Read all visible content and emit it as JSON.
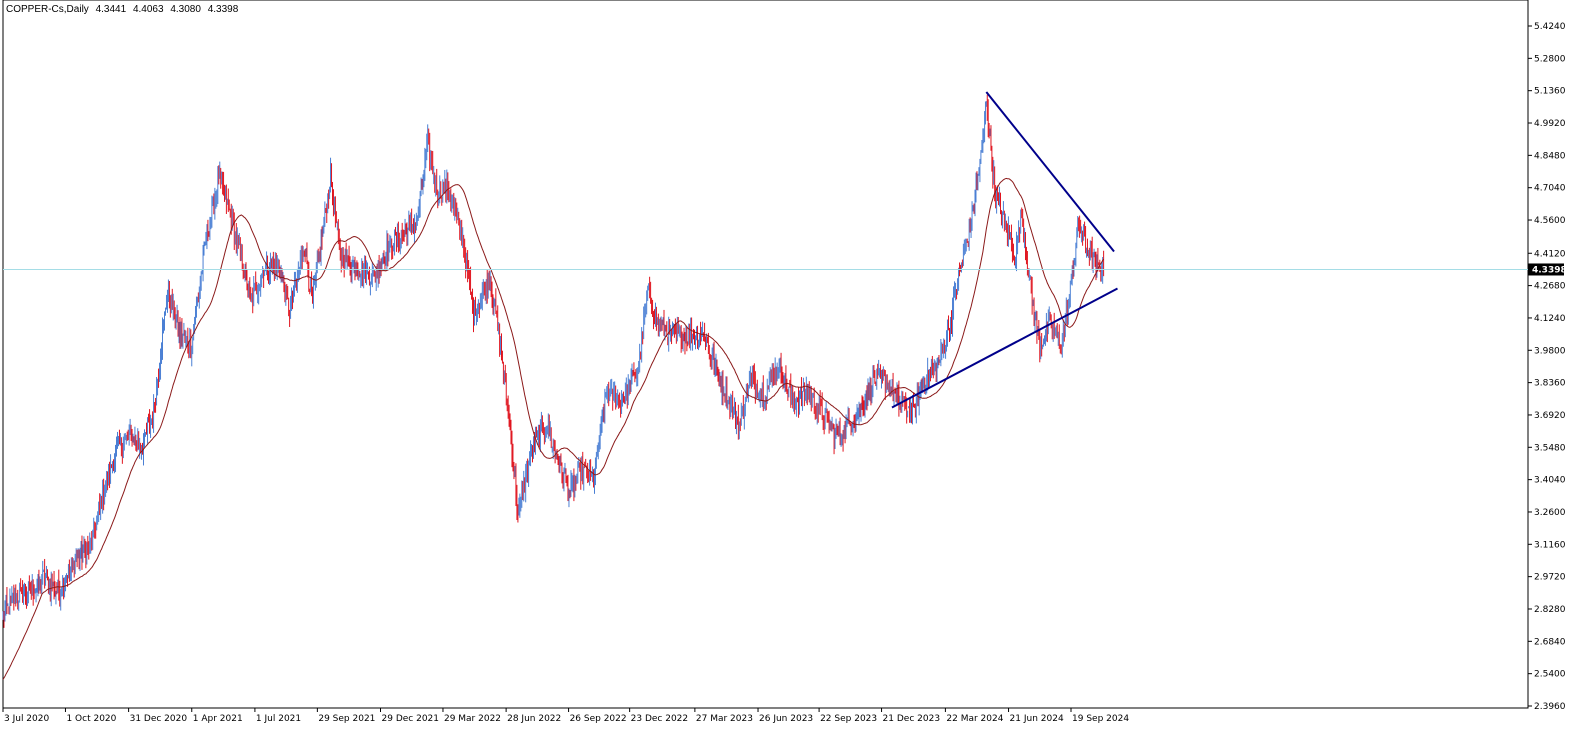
{
  "header": {
    "symbol": "COPPER-Cs,Daily",
    "open": "4.3441",
    "high": "4.4063",
    "low": "4.3080",
    "close": "4.3398"
  },
  "chart_data": {
    "type": "candlestick",
    "symbol": "COPPER-Cs",
    "timeframe": "Daily",
    "ylim": [
      2.396,
      5.424
    ],
    "y_ticks": [
      "5.4240",
      "5.2800",
      "5.1360",
      "4.9920",
      "4.8480",
      "4.7040",
      "4.5600",
      "4.4120",
      "4.2680",
      "4.1240",
      "3.9800",
      "3.8360",
      "3.6920",
      "3.5480",
      "3.4040",
      "3.2600",
      "3.1160",
      "2.9720",
      "2.8280",
      "2.6840",
      "2.5400",
      "2.3960"
    ],
    "x_ticks": [
      "3 Jul 2020",
      "1 Oct 2020",
      "31 Dec 2020",
      "1 Apr 2021",
      "1 Jul 2021",
      "29 Sep 2021",
      "29 Dec 2021",
      "29 Mar 2022",
      "28 Jun 2022",
      "26 Sep 2022",
      "23 Dec 2022",
      "27 Mar 2023",
      "26 Jun 2023",
      "22 Sep 2023",
      "21 Dec 2023",
      "22 Mar 2024",
      "21 Jun 2024",
      "19 Sep 2024"
    ],
    "current_price": "4.3398",
    "up_color": "#4a7fd4",
    "down_color": "#e0141e",
    "ma_color": "#8b1a1a",
    "trendline_color": "#00008b",
    "price_line_color": "#a5dde6",
    "price_path": [
      [
        "2020-07-03",
        2.8
      ],
      [
        "2020-07-20",
        2.88
      ],
      [
        "2020-08-10",
        2.9
      ],
      [
        "2020-09-01",
        2.97
      ],
      [
        "2020-09-20",
        2.9
      ],
      [
        "2020-10-15",
        3.05
      ],
      [
        "2020-11-05",
        3.1
      ],
      [
        "2020-11-25",
        3.35
      ],
      [
        "2020-12-15",
        3.55
      ],
      [
        "2021-01-05",
        3.6
      ],
      [
        "2021-01-20",
        3.55
      ],
      [
        "2021-02-05",
        3.7
      ],
      [
        "2021-02-25",
        4.25
      ],
      [
        "2021-03-15",
        4.05
      ],
      [
        "2021-04-01",
        4.0
      ],
      [
        "2021-04-20",
        4.45
      ],
      [
        "2021-05-10",
        4.75
      ],
      [
        "2021-05-25",
        4.6
      ],
      [
        "2021-06-10",
        4.4
      ],
      [
        "2021-06-25",
        4.2
      ],
      [
        "2021-07-15",
        4.35
      ],
      [
        "2021-08-05",
        4.35
      ],
      [
        "2021-08-20",
        4.15
      ],
      [
        "2021-09-10",
        4.45
      ],
      [
        "2021-09-22",
        4.2
      ],
      [
        "2021-10-18",
        4.75
      ],
      [
        "2021-11-01",
        4.4
      ],
      [
        "2021-11-25",
        4.35
      ],
      [
        "2021-12-20",
        4.3
      ],
      [
        "2022-01-10",
        4.45
      ],
      [
        "2022-02-01",
        4.5
      ],
      [
        "2022-02-20",
        4.55
      ],
      [
        "2022-03-07",
        4.9
      ],
      [
        "2022-03-20",
        4.7
      ],
      [
        "2022-04-05",
        4.7
      ],
      [
        "2022-04-25",
        4.5
      ],
      [
        "2022-05-12",
        4.15
      ],
      [
        "2022-06-05",
        4.3
      ],
      [
        "2022-06-20",
        4.0
      ],
      [
        "2022-07-05",
        3.6
      ],
      [
        "2022-07-15",
        3.25
      ],
      [
        "2022-08-05",
        3.55
      ],
      [
        "2022-08-25",
        3.65
      ],
      [
        "2022-09-15",
        3.45
      ],
      [
        "2022-09-28",
        3.35
      ],
      [
        "2022-10-15",
        3.45
      ],
      [
        "2022-11-01",
        3.4
      ],
      [
        "2022-11-20",
        3.8
      ],
      [
        "2022-12-10",
        3.75
      ],
      [
        "2023-01-05",
        3.9
      ],
      [
        "2023-01-18",
        4.25
      ],
      [
        "2023-02-01",
        4.1
      ],
      [
        "2023-02-20",
        4.05
      ],
      [
        "2023-03-10",
        4.05
      ],
      [
        "2023-03-25",
        4.05
      ],
      [
        "2023-04-10",
        4.05
      ],
      [
        "2023-04-25",
        3.9
      ],
      [
        "2023-05-15",
        3.75
      ],
      [
        "2023-05-30",
        3.65
      ],
      [
        "2023-06-15",
        3.85
      ],
      [
        "2023-07-05",
        3.78
      ],
      [
        "2023-07-25",
        3.92
      ],
      [
        "2023-08-15",
        3.75
      ],
      [
        "2023-09-05",
        3.8
      ],
      [
        "2023-09-25",
        3.7
      ],
      [
        "2023-10-15",
        3.6
      ],
      [
        "2023-10-28",
        3.62
      ],
      [
        "2023-11-20",
        3.72
      ],
      [
        "2023-12-10",
        3.85
      ],
      [
        "2023-12-25",
        3.85
      ],
      [
        "2024-01-15",
        3.75
      ],
      [
        "2024-02-05",
        3.7
      ],
      [
        "2024-02-20",
        3.85
      ],
      [
        "2024-03-10",
        3.9
      ],
      [
        "2024-03-25",
        4.05
      ],
      [
        "2024-04-10",
        4.3
      ],
      [
        "2024-04-28",
        4.55
      ],
      [
        "2024-05-15",
        4.9
      ],
      [
        "2024-05-20",
        5.1
      ],
      [
        "2024-06-01",
        4.7
      ],
      [
        "2024-06-15",
        4.55
      ],
      [
        "2024-07-01",
        4.4
      ],
      [
        "2024-07-10",
        4.6
      ],
      [
        "2024-07-25",
        4.2
      ],
      [
        "2024-08-05",
        4.0
      ],
      [
        "2024-08-20",
        4.1
      ],
      [
        "2024-09-05",
        4.0
      ],
      [
        "2024-09-18",
        4.25
      ],
      [
        "2024-09-30",
        4.55
      ],
      [
        "2024-10-10",
        4.45
      ],
      [
        "2024-10-25",
        4.35
      ],
      [
        "2024-11-05",
        4.34
      ]
    ],
    "trendlines": [
      {
        "from": [
          "2024-05-20",
          5.13
        ],
        "to": [
          "2024-11-20",
          4.42
        ]
      },
      {
        "from": [
          "2024-01-05",
          3.725
        ],
        "to": [
          "2024-11-25",
          4.255
        ]
      }
    ]
  }
}
